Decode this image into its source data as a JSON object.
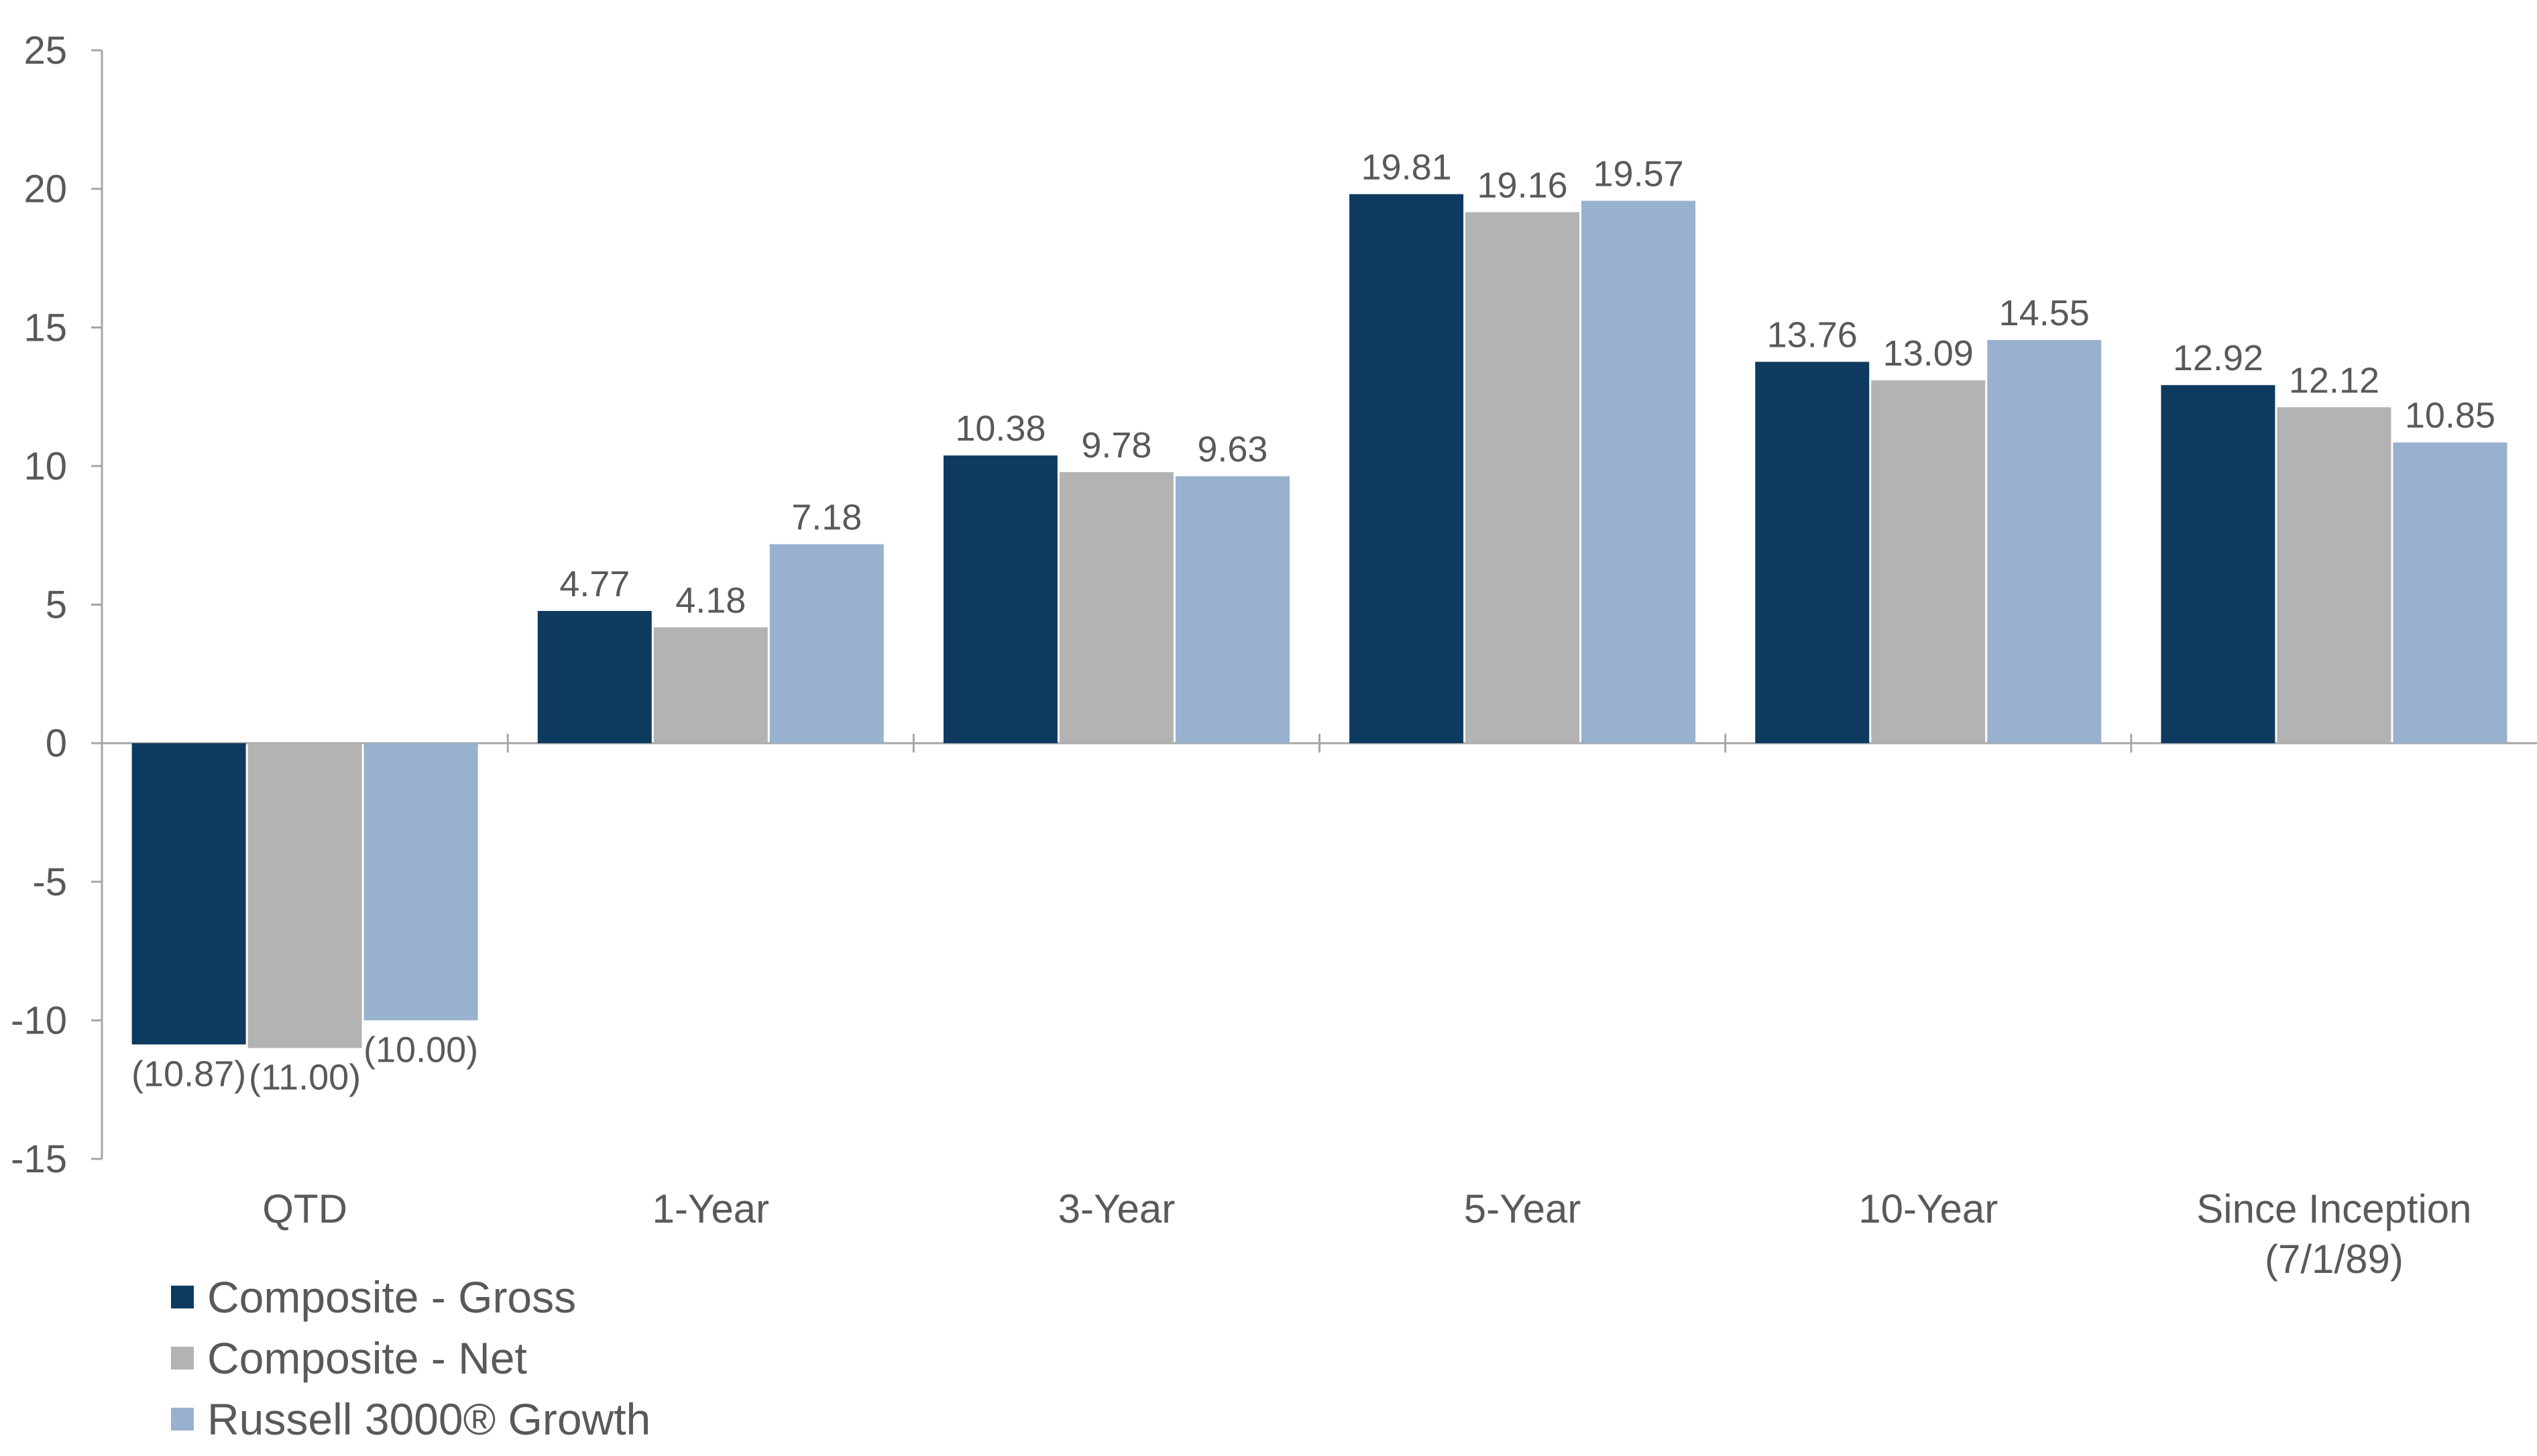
{
  "chart_data": {
    "type": "bar",
    "categories": [
      [
        "QTD"
      ],
      [
        "1-Year"
      ],
      [
        "3-Year"
      ],
      [
        "5-Year"
      ],
      [
        "10-Year"
      ],
      [
        "Since Inception",
        "(7/1/89)"
      ]
    ],
    "series": [
      {
        "name": "Composite - Gross",
        "color": "#0f3a5f",
        "values": [
          -10.87,
          4.77,
          10.38,
          19.81,
          13.76,
          12.92
        ],
        "labels": [
          "(10.87)",
          "4.77",
          "10.38",
          "19.81",
          "13.76",
          "12.92"
        ]
      },
      {
        "name": "Composite - Net",
        "color": "#b3b3b3",
        "values": [
          -11.0,
          4.18,
          9.78,
          19.16,
          13.09,
          12.12
        ],
        "labels": [
          "(11.00)",
          "4.18",
          "9.78",
          "19.16",
          "13.09",
          "12.12"
        ]
      },
      {
        "name": "Russell 3000® Growth",
        "color": "#97b1ce",
        "values": [
          -10.0,
          7.18,
          9.63,
          19.57,
          14.55,
          10.85
        ],
        "labels": [
          "(10.00)",
          "7.18",
          "9.63",
          "19.57",
          "14.55",
          "10.85"
        ]
      }
    ],
    "yticks": [
      25,
      20,
      15,
      10,
      5,
      0,
      -5,
      -10,
      -15
    ],
    "ylim": [
      -15,
      25
    ],
    "title": "",
    "xlabel": "",
    "ylabel": "",
    "grid": false,
    "legend_position": "bottom-left",
    "axis_color": "#a6a6a6",
    "text_color": "#595959"
  }
}
